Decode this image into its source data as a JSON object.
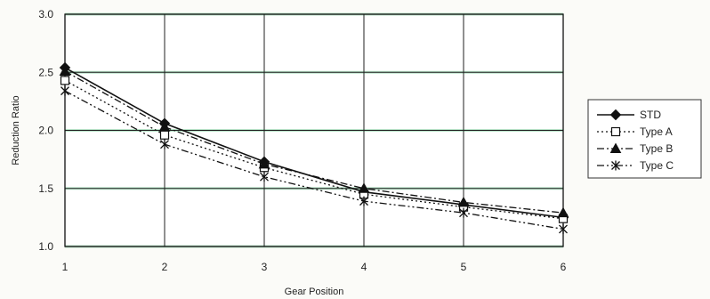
{
  "chart_data": {
    "type": "line",
    "title": "",
    "xlabel": "Gear Position",
    "ylabel": "Reduction Ratio",
    "x": [
      1,
      2,
      3,
      4,
      5,
      6
    ],
    "x_tick_labels": [
      "1",
      "2",
      "3",
      "4",
      "5",
      "6"
    ],
    "y_tick_labels": [
      "3.0",
      "2.5",
      "2.0",
      "1.5",
      "1.0"
    ],
    "xlim": [
      1,
      6
    ],
    "ylim": [
      1.0,
      3.0
    ],
    "y_ticks": [
      3.0,
      2.5,
      2.0,
      1.5,
      1.0
    ],
    "grid": true,
    "legend_position": "right",
    "series": [
      {
        "name": "STD",
        "values": [
          2.54,
          2.06,
          1.73,
          1.47,
          1.36,
          1.25
        ],
        "color": "#111111",
        "line_style": "solid",
        "marker": "diamond-filled"
      },
      {
        "name": "Type A",
        "values": [
          2.43,
          1.96,
          1.68,
          1.45,
          1.34,
          1.24
        ],
        "color": "#111111",
        "line_style": "dotted",
        "marker": "square-open"
      },
      {
        "name": "Type B",
        "values": [
          2.51,
          2.03,
          1.71,
          1.5,
          1.38,
          1.29
        ],
        "color": "#111111",
        "line_style": "dash-dot",
        "marker": "triangle-filled"
      },
      {
        "name": "Type C",
        "values": [
          2.34,
          1.88,
          1.6,
          1.39,
          1.29,
          1.15
        ],
        "color": "#111111",
        "line_style": "dash-dot-dot",
        "marker": "star-x"
      }
    ],
    "colors": {
      "plot_background": "#ffffff",
      "frame": "#111111",
      "gridline": "#222222",
      "gridline_band_tint": "#b8e3c8"
    }
  }
}
